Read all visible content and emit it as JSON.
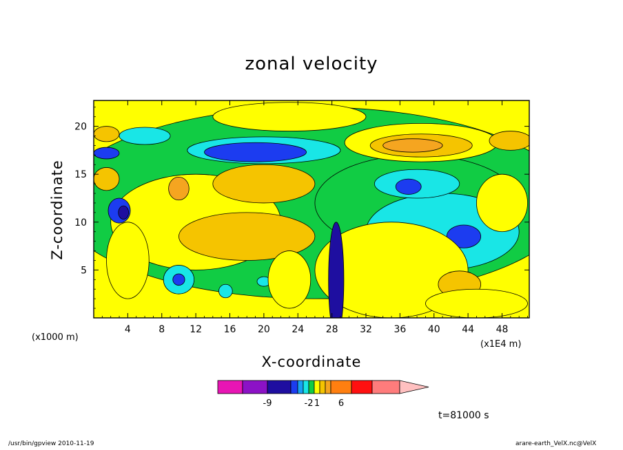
{
  "chart_data": {
    "type": "heatmap",
    "title": "zonal velocity",
    "xlabel": "X-coordinate",
    "ylabel": "Z-coordinate",
    "x_unit_label": "(x1000 m)",
    "x_unit_label_2": "(x1E4 m)",
    "x_ticks": [
      4,
      8,
      12,
      16,
      20,
      24,
      28,
      32,
      36,
      40,
      44,
      48
    ],
    "y_ticks": [
      5,
      10,
      15,
      20
    ],
    "xlim": [
      0,
      51.2
    ],
    "ylim": [
      0,
      22.7
    ],
    "colorbar": {
      "colors": [
        "#e815b4",
        "#8c12c6",
        "#1e0ea0",
        "#1c3cf0",
        "#18a0f4",
        "#19e6e6",
        "#11cc44",
        "#ffff00",
        "#f5c400",
        "#f5a520",
        "#ff7f10",
        "#ff1010",
        "#ff7c7c",
        "#ffc0c0"
      ],
      "labels": [
        {
          "value": "-9",
          "pos": 2
        },
        {
          "value": "-2",
          "pos": 6
        },
        {
          "value": "1",
          "pos": 7.5
        },
        {
          "value": "6",
          "pos": 10.5
        }
      ]
    },
    "field_blobs": [
      {
        "x": 26,
        "y": 12,
        "rx": 30,
        "ry": 10,
        "level": "green"
      },
      {
        "x": 12,
        "y": 10,
        "rx": 10,
        "ry": 5,
        "level": "yellow"
      },
      {
        "x": 18,
        "y": 8.5,
        "rx": 8,
        "ry": 2.5,
        "level": "light-orange"
      },
      {
        "x": 20,
        "y": 14,
        "rx": 6,
        "ry": 2,
        "level": "light-orange"
      },
      {
        "x": 10,
        "y": 13.5,
        "rx": 1.2,
        "ry": 1.2,
        "level": "orange"
      },
      {
        "x": 23,
        "y": 21,
        "rx": 9,
        "ry": 1.5,
        "level": "yellow"
      },
      {
        "x": 20,
        "y": 17.5,
        "rx": 9,
        "ry": 1.4,
        "level": "cyan"
      },
      {
        "x": 19,
        "y": 17.3,
        "rx": 6,
        "ry": 1.0,
        "level": "blue"
      },
      {
        "x": 6,
        "y": 19,
        "rx": 3,
        "ry": 0.9,
        "level": "cyan"
      },
      {
        "x": 3,
        "y": 11.2,
        "rx": 1.3,
        "ry": 1.3,
        "level": "blue"
      },
      {
        "x": 3.5,
        "y": 11,
        "rx": 0.6,
        "ry": 0.7,
        "level": "navy"
      },
      {
        "x": 1.5,
        "y": 17.2,
        "rx": 1.5,
        "ry": 0.6,
        "level": "blue"
      },
      {
        "x": 1.5,
        "y": 14.5,
        "rx": 1.5,
        "ry": 1.2,
        "level": "light-orange"
      },
      {
        "x": 1.5,
        "y": 19.2,
        "rx": 1.5,
        "ry": 0.8,
        "level": "light-orange"
      },
      {
        "x": 38,
        "y": 12,
        "rx": 12,
        "ry": 5,
        "level": "green"
      },
      {
        "x": 41,
        "y": 9,
        "rx": 9,
        "ry": 4,
        "level": "cyan"
      },
      {
        "x": 43.5,
        "y": 8.5,
        "rx": 2,
        "ry": 1.2,
        "level": "blue"
      },
      {
        "x": 38,
        "y": 14,
        "rx": 5,
        "ry": 1.5,
        "level": "cyan"
      },
      {
        "x": 37,
        "y": 13.7,
        "rx": 1.5,
        "ry": 0.8,
        "level": "blue"
      },
      {
        "x": 38.5,
        "y": 18.3,
        "rx": 9,
        "ry": 2,
        "level": "yellow"
      },
      {
        "x": 38.5,
        "y": 18,
        "rx": 6,
        "ry": 1.2,
        "level": "light-orange"
      },
      {
        "x": 37.5,
        "y": 18,
        "rx": 3.5,
        "ry": 0.7,
        "level": "orange"
      },
      {
        "x": 49,
        "y": 18.5,
        "rx": 2.5,
        "ry": 1,
        "level": "light-orange"
      },
      {
        "x": 35,
        "y": 5,
        "rx": 9,
        "ry": 5,
        "level": "yellow"
      },
      {
        "x": 43,
        "y": 3.5,
        "rx": 2.5,
        "ry": 1.4,
        "level": "light-orange"
      },
      {
        "x": 28.5,
        "y": 4,
        "rx": 0.9,
        "ry": 6,
        "level": "navy"
      },
      {
        "x": 10,
        "y": 4,
        "rx": 1.8,
        "ry": 1.5,
        "level": "cyan"
      },
      {
        "x": 10,
        "y": 4,
        "rx": 0.7,
        "ry": 0.6,
        "level": "blue"
      },
      {
        "x": 15.5,
        "y": 2.8,
        "rx": 0.8,
        "ry": 0.7,
        "level": "cyan"
      },
      {
        "x": 20,
        "y": 3.8,
        "rx": 0.8,
        "ry": 0.5,
        "level": "cyan"
      },
      {
        "x": 23,
        "y": 4,
        "rx": 2.5,
        "ry": 3,
        "level": "yellow"
      },
      {
        "x": 4,
        "y": 6,
        "rx": 2.5,
        "ry": 4,
        "level": "yellow"
      },
      {
        "x": 48,
        "y": 12,
        "rx": 3,
        "ry": 3,
        "level": "yellow"
      },
      {
        "x": 45,
        "y": 1.5,
        "rx": 6,
        "ry": 1.5,
        "level": "yellow"
      }
    ]
  },
  "annotations": {
    "time": "t=81000 s",
    "footer_left": "/usr/bin/gpview   2010-11-19",
    "footer_right": "arare-earth_VelX.nc@VelX"
  }
}
